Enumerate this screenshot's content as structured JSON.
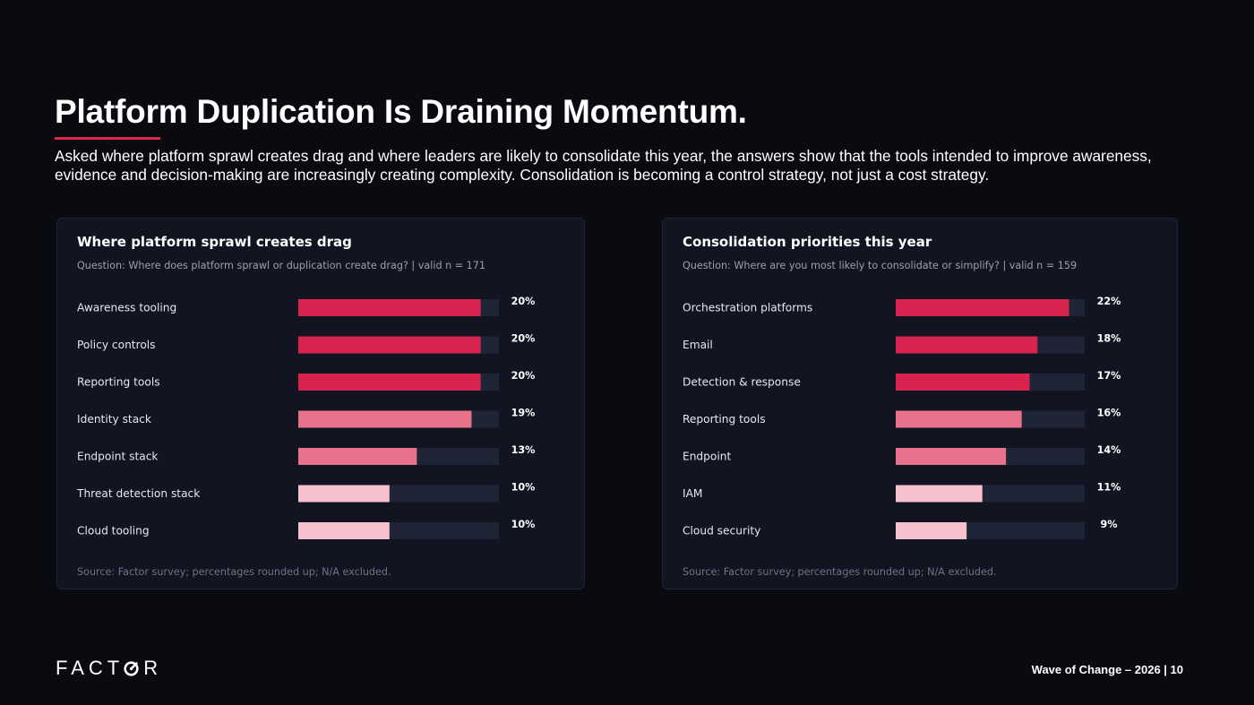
{
  "page": {
    "title": "Platform Duplication Is Draining Momentum.",
    "subtitle": "Asked where platform sprawl creates drag and where leaders are likely to consolidate this year, the answers show that the tools intended to improve awareness, evidence and decision-making are increasingly creating complexity. Consolidation is becoming a control strategy, not just a cost strategy.",
    "footer": "Wave of Change – 2026 | 10",
    "logo": {
      "before": "FACT",
      "after": "R"
    },
    "accent_color": "#e0284f"
  },
  "chart_data": [
    {
      "type": "bar",
      "orientation": "horizontal",
      "title": "Where platform sprawl creates drag",
      "question": "Question: Where does platform sprawl or duplication create drag? | valid n = 171",
      "source": "Source: Factor survey; percentages rounded up; N/A excluded.",
      "categories": [
        "Awareness tooling",
        "Policy controls",
        "Reporting tools",
        "Identity stack",
        "Endpoint stack",
        "Threat detection stack",
        "Cloud tooling"
      ],
      "values": [
        20,
        20,
        20,
        19,
        13,
        10,
        10
      ],
      "value_labels": [
        "20%",
        "20%",
        "20%",
        "19%",
        "13%",
        "10%",
        "10%"
      ],
      "xlim": [
        0,
        22
      ],
      "bar_colors": [
        "#d8234f",
        "#d8234f",
        "#d8234f",
        "#e8728c",
        "#e8728c",
        "#f5c1cd",
        "#f5c1cd"
      ],
      "track_color": "#1f2436"
    },
    {
      "type": "bar",
      "orientation": "horizontal",
      "title": "Consolidation priorities this year",
      "question": "Question: Where are you most likely to consolidate or simplify? | valid n = 159",
      "source": "Source: Factor survey; percentages rounded up; N/A excluded.",
      "categories": [
        "Orchestration platforms",
        "Email",
        "Detection & response",
        "Reporting tools",
        "Endpoint",
        "IAM",
        "Cloud security"
      ],
      "values": [
        22,
        18,
        17,
        16,
        14,
        11,
        9
      ],
      "value_labels": [
        "22%",
        "18%",
        "17%",
        "16%",
        "14%",
        "11%",
        "9%"
      ],
      "xlim": [
        0,
        24
      ],
      "bar_colors": [
        "#d8234f",
        "#d8234f",
        "#d8234f",
        "#e8728c",
        "#e8728c",
        "#f5c1cd",
        "#f5c1cd"
      ],
      "track_color": "#1f2436"
    }
  ]
}
